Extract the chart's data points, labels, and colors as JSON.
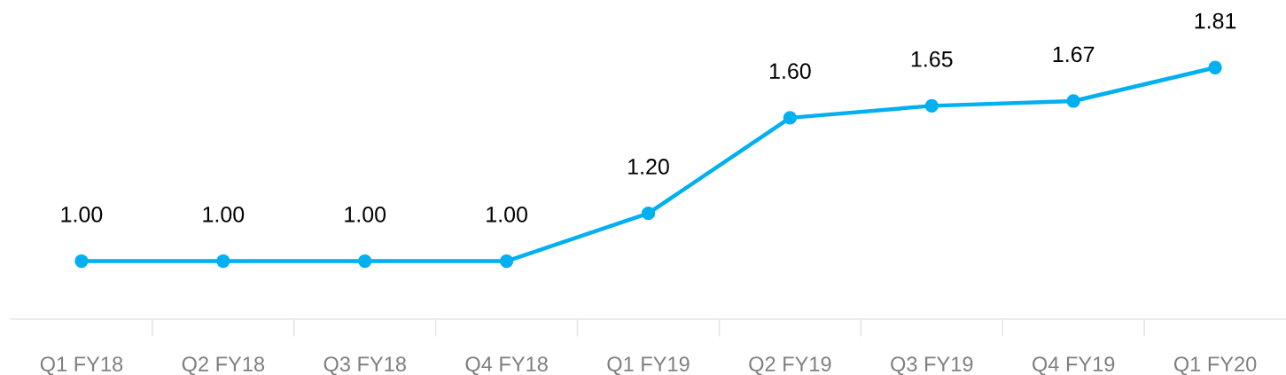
{
  "chart_data": {
    "type": "line",
    "categories": [
      "Q1 FY18",
      "Q2 FY18",
      "Q3 FY18",
      "Q4 FY18",
      "Q1 FY19",
      "Q2 FY19",
      "Q3 FY19",
      "Q4 FY19",
      "Q1 FY20"
    ],
    "series": [
      {
        "color": "#00b0f0",
        "values": [
          1.0,
          1.0,
          1.0,
          1.0,
          1.2,
          1.6,
          1.65,
          1.67,
          1.81
        ],
        "value_labels": [
          "1.00",
          "1.00",
          "1.00",
          "1.00",
          "1.20",
          "1.60",
          "1.65",
          "1.67",
          "1.81"
        ]
      }
    ],
    "marker": "circle",
    "line_style": "solid",
    "legend": false
  }
}
